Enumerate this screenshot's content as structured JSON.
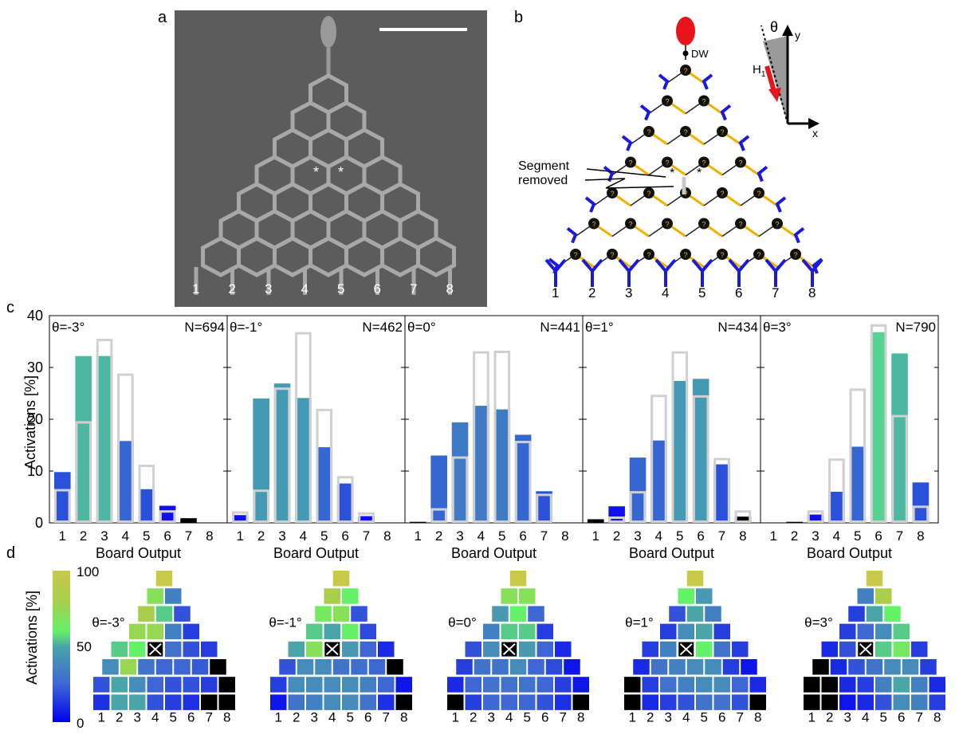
{
  "panel_labels": {
    "a": "a",
    "b": "b",
    "c": "c",
    "d": "d"
  },
  "sem": {
    "output_labels": [
      "1",
      "2",
      "3",
      "4",
      "5",
      "6",
      "7",
      "8"
    ],
    "asterisk": "*"
  },
  "schematic": {
    "dw_label": "DW",
    "segment_label_line1": "Segment",
    "segment_label_line2": "removed",
    "field_label": "H",
    "field_subscript": "1",
    "theta_symbol": "θ",
    "axis_x": "x",
    "axis_y": "y",
    "node_symbol": "?",
    "asterisk": "*",
    "output_labels": [
      "1",
      "2",
      "3",
      "4",
      "5",
      "6",
      "7",
      "8"
    ],
    "colors": {
      "arms": "#1a1adc",
      "arrow": "#f0b000",
      "pad": "#e8141c",
      "node": "#111111",
      "link": "#222222"
    }
  },
  "chart_data": {
    "type": "bar",
    "ylabel": "Activations [%]",
    "xlabel": "Board Output",
    "yticks": [
      0,
      10,
      20,
      30,
      40
    ],
    "ylim": [
      0,
      40
    ],
    "categories": [
      "1",
      "2",
      "3",
      "4",
      "5",
      "6",
      "7",
      "8"
    ],
    "panels": [
      {
        "theta": "θ=-3°",
        "n": "N=694",
        "measured": [
          9.8,
          32.2,
          32.2,
          15.8,
          6.5,
          3.3,
          0.9,
          0
        ],
        "outline": [
          6.3,
          19.4,
          35.3,
          28.6,
          11.0,
          2.2,
          0,
          0
        ]
      },
      {
        "theta": "θ=-1°",
        "n": "N=462",
        "measured": [
          1.5,
          24.0,
          26.9,
          24.1,
          14.6,
          7.6,
          1.3,
          0
        ],
        "outline": [
          2.0,
          6.2,
          25.9,
          36.6,
          21.8,
          8.8,
          1.8,
          0
        ]
      },
      {
        "theta": "θ=0°",
        "n": "N=441",
        "measured": [
          0.2,
          13.0,
          19.4,
          22.6,
          21.9,
          17.0,
          6.1,
          0
        ],
        "outline": [
          0,
          2.6,
          12.6,
          32.9,
          33.0,
          15.6,
          5.4,
          0
        ]
      },
      {
        "theta": "θ=1°",
        "n": "N=434",
        "measured": [
          0.7,
          3.2,
          12.6,
          15.9,
          27.4,
          27.8,
          11.3,
          1.2
        ],
        "outline": [
          0,
          1.0,
          5.9,
          24.5,
          32.9,
          24.4,
          12.3,
          2.2
        ]
      },
      {
        "theta": "θ=3°",
        "n": "N=790",
        "measured": [
          0,
          0.2,
          1.6,
          6.0,
          14.7,
          36.8,
          32.7,
          7.8
        ],
        "outline": [
          0,
          0,
          2.2,
          12.2,
          25.7,
          38.1,
          20.6,
          3.1
        ]
      }
    ],
    "colormap": {
      "label": "Activations [%]",
      "ticks": [
        "100",
        "50",
        "0"
      ],
      "stops": [
        "#0000ee",
        "#3f67d4",
        "#4aa5a8",
        "#64f268",
        "#a8ce4c",
        "#c9c94a"
      ]
    },
    "maps": [
      {
        "theta": "θ=-3°",
        "rows": [
          [
            100
          ],
          [
            70,
            35
          ],
          [
            80,
            55,
            20
          ],
          [
            75,
            75,
            35,
            15
          ],
          [
            55,
            60,
            -1,
            30,
            20,
            15
          ],
          [
            40,
            75,
            30,
            25,
            25,
            22,
            0
          ],
          [
            20,
            50,
            40,
            25,
            20,
            20,
            15,
            0
          ],
          [
            12,
            50,
            50,
            20,
            15,
            12,
            0,
            0
          ]
        ]
      },
      {
        "theta": "θ=-1°",
        "rows": [
          [
            100
          ],
          [
            80,
            60
          ],
          [
            65,
            70,
            20
          ],
          [
            55,
            50,
            60,
            18
          ],
          [
            50,
            70,
            -1,
            45,
            25,
            10
          ],
          [
            20,
            40,
            40,
            30,
            28,
            25,
            0
          ],
          [
            15,
            40,
            40,
            40,
            40,
            35,
            25,
            5
          ],
          [
            5,
            30,
            35,
            40,
            40,
            30,
            12,
            0
          ]
        ]
      },
      {
        "theta": "θ=0°",
        "rows": [
          [
            100
          ],
          [
            70,
            70
          ],
          [
            45,
            60,
            25
          ],
          [
            35,
            55,
            55,
            15
          ],
          [
            20,
            40,
            -1,
            45,
            25,
            10
          ],
          [
            15,
            30,
            30,
            40,
            25,
            18,
            5
          ],
          [
            10,
            25,
            30,
            30,
            30,
            25,
            15,
            5
          ],
          [
            0,
            15,
            25,
            25,
            25,
            20,
            12,
            0
          ]
        ]
      },
      {
        "theta": "θ=1°",
        "rows": [
          [
            100
          ],
          [
            60,
            45
          ],
          [
            20,
            50,
            35
          ],
          [
            15,
            40,
            50,
            15
          ],
          [
            15,
            35,
            -1,
            60,
            30,
            15
          ],
          [
            10,
            30,
            35,
            40,
            40,
            15,
            5
          ],
          [
            0,
            15,
            30,
            35,
            40,
            40,
            25,
            10
          ],
          [
            0,
            10,
            15,
            20,
            30,
            30,
            20,
            0
          ]
        ]
      },
      {
        "theta": "θ=3°",
        "rows": [
          [
            100
          ],
          [
            35,
            80
          ],
          [
            15,
            50,
            60
          ],
          [
            15,
            25,
            40,
            55
          ],
          [
            10,
            20,
            -1,
            55,
            65,
            15
          ],
          [
            0,
            10,
            20,
            30,
            40,
            40,
            15
          ],
          [
            0,
            0,
            10,
            15,
            35,
            50,
            35,
            10
          ],
          [
            0,
            0,
            5,
            10,
            20,
            40,
            35,
            15
          ]
        ]
      }
    ],
    "map_x_labels": [
      "1",
      "2",
      "3",
      "4",
      "5",
      "6",
      "7",
      "8"
    ]
  }
}
